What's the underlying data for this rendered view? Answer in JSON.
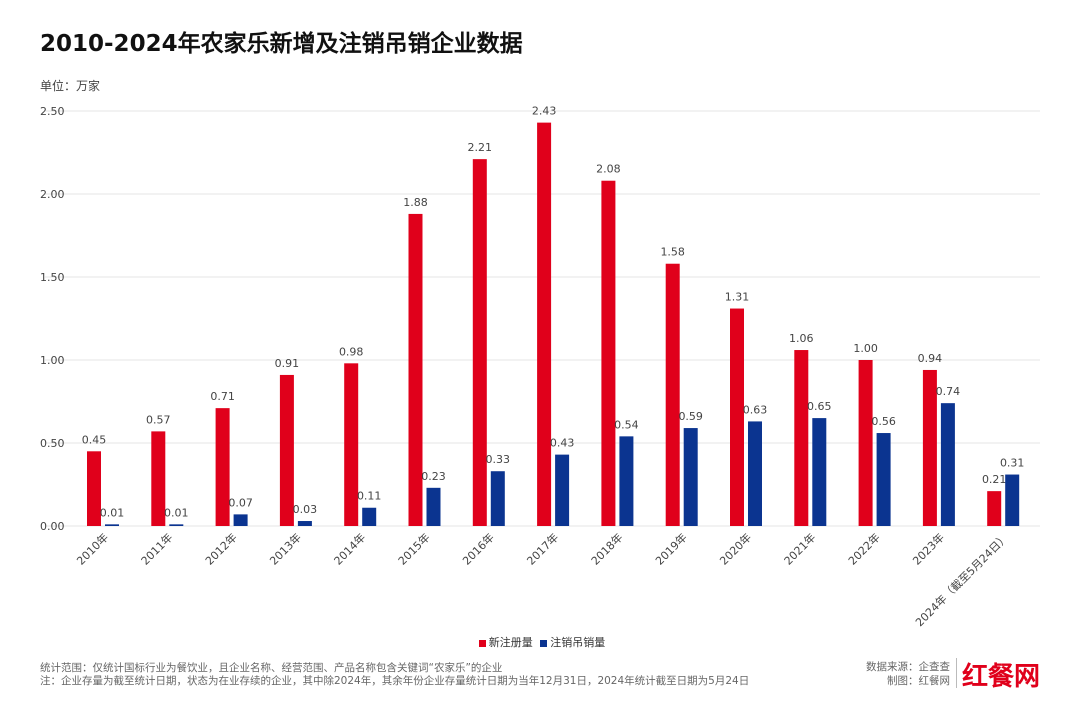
{
  "chart_data": {
    "type": "bar",
    "title": "2010-2024年农家乐新增及注销吊销企业数据",
    "unit_label": "单位：万家",
    "categories": [
      "2010年",
      "2011年",
      "2012年",
      "2013年",
      "2014年",
      "2015年",
      "2016年",
      "2017年",
      "2018年",
      "2019年",
      "2020年",
      "2021年",
      "2022年",
      "2023年",
      "2024年（截至5月24日）"
    ],
    "series": [
      {
        "name": "新注册量",
        "color": "#e0001b",
        "values": [
          0.45,
          0.57,
          0.71,
          0.91,
          0.98,
          1.88,
          2.21,
          2.43,
          2.08,
          1.58,
          1.31,
          1.06,
          1.0,
          0.94,
          0.21
        ]
      },
      {
        "name": "注销吊销量",
        "color": "#0b3490",
        "values": [
          0.01,
          0.01,
          0.07,
          0.03,
          0.11,
          0.23,
          0.33,
          0.43,
          0.54,
          0.59,
          0.63,
          0.65,
          0.56,
          0.74,
          0.31
        ]
      }
    ],
    "yticks": [
      "0.00",
      "0.50",
      "1.00",
      "1.50",
      "2.00",
      "2.50"
    ],
    "ylim": [
      0,
      2.5
    ],
    "grid": true,
    "legend": "bottom-center"
  },
  "footer": {
    "note1": "统计范围：仅统计国标行业为餐饮业，且企业名称、经营范围、产品名称包含关键词“农家乐”的企业",
    "note2": "注：企业存量为截至统计日期，状态为在业存续的企业，其中除2024年，其余年份企业存量统计日期为当年12月31日，2024年统计截至日期为5月24日",
    "source": "数据来源：企查查",
    "maker": "制图：红餐网",
    "logo": "红餐网"
  }
}
